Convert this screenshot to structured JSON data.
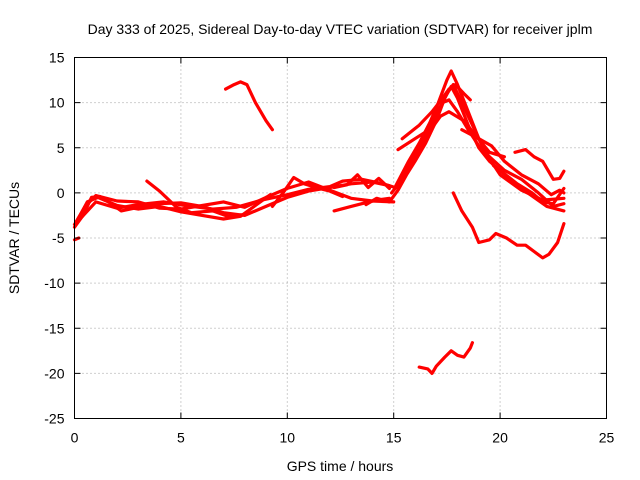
{
  "chart_data": {
    "type": "line",
    "title": "Day 333 of 2025, Sidereal Day-to-day VTEC variation (SDTVAR) for receiver jplm",
    "xlabel": "GPS time / hours",
    "ylabel": "SDTVAR / TECUs",
    "xlim": [
      0,
      25
    ],
    "ylim": [
      -25,
      15
    ],
    "xticks": [
      0,
      5,
      10,
      15,
      20,
      25
    ],
    "yticks": [
      15,
      10,
      5,
      0,
      -5,
      -10,
      -15,
      -20,
      -25
    ],
    "grid": true,
    "legend": false,
    "series_color": "#ff0000",
    "series": [
      {
        "name": "track-1",
        "points": [
          [
            0,
            -5.2
          ],
          [
            0.2,
            -5
          ]
        ]
      },
      {
        "name": "track-2",
        "points": [
          [
            0,
            -3.8
          ],
          [
            0.4,
            -2.5
          ],
          [
            0.8,
            -0.5
          ],
          [
            1.2,
            -0.4
          ],
          [
            1.6,
            -1.0
          ],
          [
            2.2,
            -2.0
          ],
          [
            3,
            -1.6
          ],
          [
            4,
            -1.2
          ],
          [
            5,
            -1.1
          ],
          [
            6,
            -1.5
          ],
          [
            7,
            -2.2
          ],
          [
            8,
            -2.5
          ],
          [
            9,
            -1.5
          ],
          [
            10,
            -0.5
          ],
          [
            11,
            0.2
          ],
          [
            12,
            0.6
          ],
          [
            13,
            1.0
          ],
          [
            14,
            1.2
          ],
          [
            14.8,
            0.8
          ]
        ]
      },
      {
        "name": "track-3",
        "points": [
          [
            0,
            -3.5
          ],
          [
            0.5,
            -1.5
          ],
          [
            1,
            -0.3
          ],
          [
            2,
            -0.9
          ],
          [
            3,
            -1.0
          ],
          [
            4,
            -1.7
          ],
          [
            5,
            -1.8
          ],
          [
            6,
            -1.4
          ],
          [
            7,
            -1.0
          ],
          [
            8,
            -1.6
          ],
          [
            9,
            -0.5
          ],
          [
            10,
            0.5
          ],
          [
            11,
            1.2
          ],
          [
            12,
            0.3
          ],
          [
            13,
            -0.6
          ],
          [
            14,
            -0.9
          ],
          [
            15,
            -1.0
          ]
        ]
      },
      {
        "name": "track-4",
        "points": [
          [
            0.1,
            -3.2
          ],
          [
            0.6,
            -1.0
          ],
          [
            1.1,
            -0.5
          ],
          [
            2,
            -1.4
          ],
          [
            3,
            -1.8
          ],
          [
            4,
            -1.5
          ],
          [
            5,
            -2.1
          ],
          [
            6,
            -2.5
          ],
          [
            7,
            -2.9
          ],
          [
            7.8,
            -2.6
          ],
          [
            8.5,
            -1.4
          ],
          [
            9.2,
            -0.2
          ]
        ]
      },
      {
        "name": "track-5",
        "points": [
          [
            0.3,
            -2.8
          ],
          [
            1,
            -1.0
          ],
          [
            2,
            -1.7
          ],
          [
            3,
            -1.3
          ],
          [
            4.2,
            -1.0
          ],
          [
            5.2,
            -1.4
          ],
          [
            6.5,
            -1.8
          ],
          [
            7.6,
            -1.6
          ],
          [
            8.8,
            -0.8
          ],
          [
            10,
            -0.2
          ],
          [
            11,
            0.4
          ],
          [
            12,
            0.7
          ],
          [
            12.6,
            1.3
          ],
          [
            13.5,
            1.5
          ],
          [
            14.5,
            1.0
          ],
          [
            15.2,
            0.5
          ]
        ]
      },
      {
        "name": "track-6",
        "points": [
          [
            3.4,
            1.3
          ],
          [
            4,
            0.2
          ],
          [
            4.8,
            -1.6
          ],
          [
            5.5,
            -2.2
          ],
          [
            6.5,
            -2.0
          ],
          [
            7.2,
            -2.6
          ],
          [
            8,
            -2.4
          ]
        ]
      },
      {
        "name": "track-7",
        "points": [
          [
            9.3,
            -1.5
          ],
          [
            9.8,
            0.0
          ],
          [
            10.3,
            1.7
          ],
          [
            10.8,
            1.0
          ],
          [
            11.5,
            0.5
          ],
          [
            12,
            0.2
          ],
          [
            12.6,
            -0.4
          ]
        ]
      },
      {
        "name": "track-8",
        "points": [
          [
            12.2,
            0.6
          ],
          [
            12.8,
            0.9
          ],
          [
            13.3,
            2.0
          ],
          [
            13.8,
            0.6
          ],
          [
            14.3,
            1.6
          ],
          [
            14.8,
            0.5
          ]
        ]
      },
      {
        "name": "track-9",
        "points": [
          [
            12.2,
            -2.0
          ],
          [
            13,
            -1.5
          ],
          [
            13.5,
            -1.2
          ],
          [
            14.2,
            -0.8
          ],
          [
            14.8,
            -0.6
          ]
        ]
      },
      {
        "name": "track-10",
        "points": [
          [
            13.7,
            -1.3
          ],
          [
            14.2,
            -0.6
          ],
          [
            14.8,
            -1.0
          ],
          [
            15.2,
            0.3
          ],
          [
            15.6,
            2.0
          ],
          [
            16,
            3.5
          ],
          [
            16.5,
            5.5
          ],
          [
            17,
            8.0
          ],
          [
            17.4,
            10.5
          ],
          [
            17.7,
            11.8
          ],
          [
            18,
            10.5
          ],
          [
            18.5,
            7.5
          ],
          [
            19,
            5.0
          ],
          [
            19.5,
            3.5
          ],
          [
            20,
            2.5
          ],
          [
            20.8,
            1.0
          ],
          [
            21.5,
            0.0
          ],
          [
            22,
            -1.0
          ],
          [
            22.5,
            -1.2
          ],
          [
            23,
            0.5
          ]
        ]
      },
      {
        "name": "track-11",
        "points": [
          [
            14.9,
            0.0
          ],
          [
            15.4,
            1.5
          ],
          [
            15.8,
            3.0
          ],
          [
            16.3,
            5.2
          ],
          [
            16.8,
            7.5
          ],
          [
            17.2,
            9.5
          ],
          [
            17.5,
            11.0
          ],
          [
            17.8,
            12.0
          ],
          [
            18.2,
            10.0
          ],
          [
            18.8,
            7.0
          ],
          [
            19.3,
            4.5
          ],
          [
            20,
            2.0
          ],
          [
            21,
            0.3
          ],
          [
            22,
            -0.8
          ],
          [
            23,
            -0.6
          ]
        ]
      },
      {
        "name": "track-12",
        "points": [
          [
            15.1,
            0.8
          ],
          [
            15.7,
            3.5
          ],
          [
            16.2,
            5.5
          ],
          [
            16.7,
            7.8
          ],
          [
            17.1,
            10.0
          ],
          [
            17.5,
            12.5
          ],
          [
            17.7,
            13.5
          ],
          [
            18.0,
            12.0
          ],
          [
            18.5,
            9.0
          ],
          [
            19,
            6.0
          ],
          [
            19.7,
            3.0
          ],
          [
            20.5,
            1.5
          ],
          [
            21.3,
            0.0
          ],
          [
            22.2,
            -1.5
          ],
          [
            23,
            -2.0
          ]
        ]
      },
      {
        "name": "track-13",
        "points": [
          [
            15.3,
            1.2
          ],
          [
            15.9,
            4.0
          ],
          [
            16.4,
            6.0
          ],
          [
            16.9,
            8.5
          ],
          [
            17.3,
            10.0
          ],
          [
            17.6,
            10.3
          ],
          [
            18,
            9.0
          ],
          [
            18.5,
            7.0
          ],
          [
            19,
            5.2
          ],
          [
            19.5,
            4.0
          ],
          [
            20.2,
            2.5
          ],
          [
            21,
            1.5
          ],
          [
            21.8,
            0.0
          ],
          [
            22.5,
            -1.5
          ],
          [
            23,
            -1.2
          ]
        ]
      },
      {
        "name": "track-14",
        "points": [
          [
            15.4,
            6.0
          ],
          [
            16.2,
            7.5
          ],
          [
            16.8,
            9.0
          ],
          [
            17.2,
            10.2
          ],
          [
            17.6,
            11.5
          ],
          [
            17.9,
            12.0
          ],
          [
            18.3,
            11.0
          ],
          [
            18.6,
            10.3
          ]
        ]
      },
      {
        "name": "track-15",
        "points": [
          [
            15.2,
            4.8
          ],
          [
            16,
            6.0
          ],
          [
            16.8,
            7.2
          ],
          [
            17.2,
            8.5
          ],
          [
            17.6,
            9.0
          ],
          [
            18.3,
            8.0
          ],
          [
            18.8,
            6.5
          ],
          [
            19.5,
            4.5
          ],
          [
            20.2,
            4.0
          ]
        ]
      },
      {
        "name": "track-16",
        "points": [
          [
            18.2,
            7.0
          ],
          [
            19,
            6.0
          ],
          [
            19.6,
            5.2
          ],
          [
            20.2,
            3.5
          ],
          [
            21,
            2.0
          ],
          [
            21.8,
            1.0
          ],
          [
            22.4,
            -0.2
          ],
          [
            22.8,
            0.3
          ],
          [
            23,
            0.0
          ]
        ]
      },
      {
        "name": "track-17",
        "points": [
          [
            7.1,
            11.5
          ],
          [
            7.5,
            12.0
          ],
          [
            7.8,
            12.3
          ],
          [
            8.1,
            12.0
          ],
          [
            8.5,
            10.0
          ],
          [
            9,
            8.0
          ],
          [
            9.3,
            7.0
          ]
        ]
      },
      {
        "name": "track-18",
        "points": [
          [
            17.8,
            0.0
          ],
          [
            18.2,
            -2.0
          ],
          [
            18.7,
            -3.8
          ],
          [
            19,
            -5.5
          ],
          [
            19.5,
            -5.2
          ],
          [
            19.8,
            -4.5
          ],
          [
            20.3,
            -5.0
          ],
          [
            20.8,
            -5.8
          ],
          [
            21.2,
            -5.8
          ],
          [
            21.6,
            -6.5
          ],
          [
            22.0,
            -7.2
          ],
          [
            22.3,
            -6.8
          ],
          [
            22.7,
            -5.5
          ],
          [
            23,
            -3.4
          ]
        ]
      },
      {
        "name": "track-19",
        "points": [
          [
            20.7,
            4.5
          ],
          [
            21.2,
            4.8
          ],
          [
            21.6,
            4.0
          ],
          [
            22.0,
            3.5
          ],
          [
            22.5,
            1.5
          ],
          [
            22.8,
            1.6
          ],
          [
            23,
            2.4
          ]
        ]
      },
      {
        "name": "track-20",
        "points": [
          [
            16.2,
            -19.3
          ],
          [
            16.6,
            -19.5
          ],
          [
            16.8,
            -20.0
          ],
          [
            17,
            -19.2
          ],
          [
            17.4,
            -18.2
          ],
          [
            17.7,
            -17.5
          ],
          [
            18,
            -18.0
          ],
          [
            18.3,
            -18.2
          ],
          [
            18.6,
            -17.2
          ],
          [
            18.7,
            -16.6
          ]
        ]
      }
    ]
  }
}
